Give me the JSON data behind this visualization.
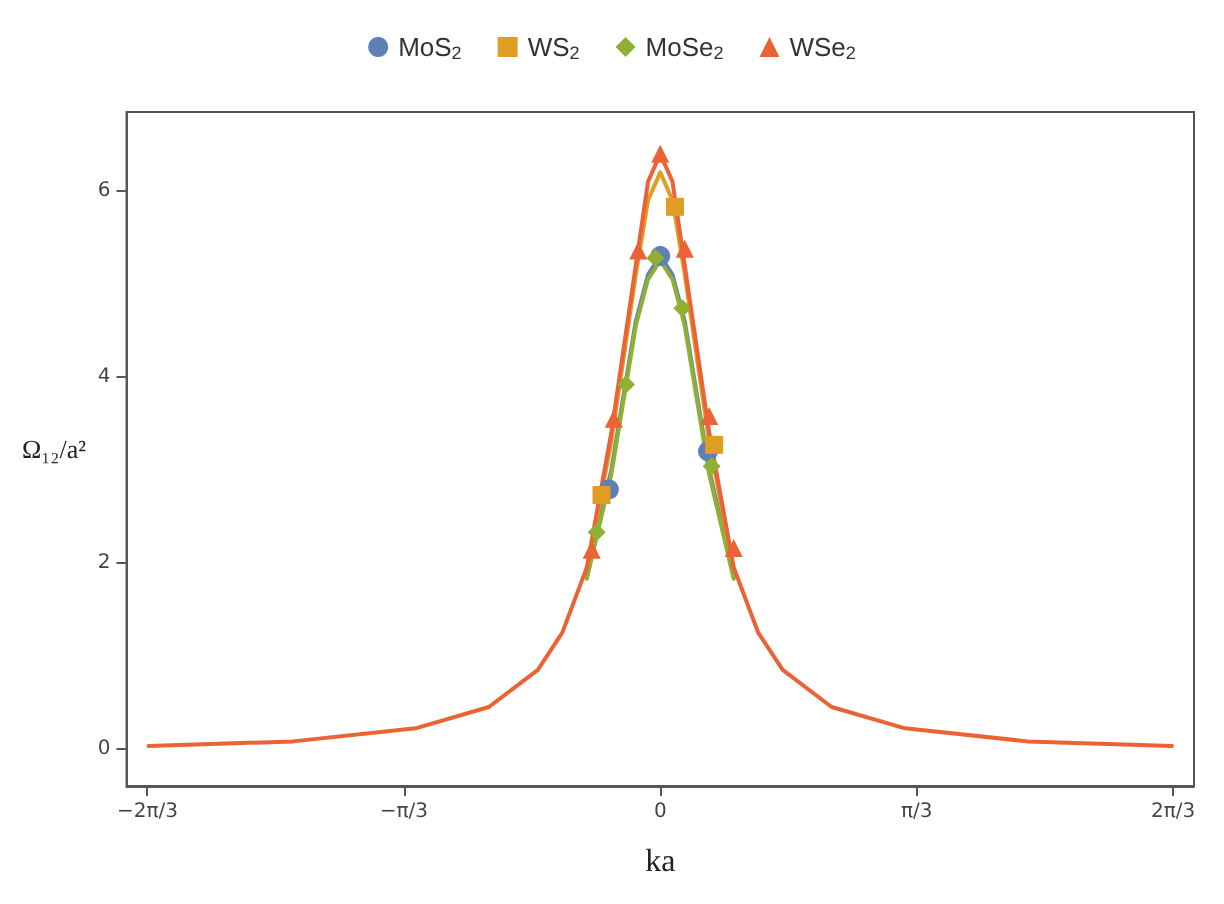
{
  "chart_data": {
    "type": "line",
    "xlabel": "ka",
    "ylabel": "Ω₁₂/a²",
    "xlim": [
      -2.18,
      2.18
    ],
    "ylim": [
      -0.4,
      6.85
    ],
    "xticks": [
      {
        "value": -2.0944,
        "label": "−2π/3"
      },
      {
        "value": -1.0472,
        "label": "−π/3"
      },
      0,
      {
        "value": 1.0472,
        "label": "π/3"
      },
      {
        "value": 2.0944,
        "label": "2π/3"
      }
    ],
    "yticks": [
      0,
      2,
      4,
      6
    ],
    "grid": false,
    "legend": "top",
    "line_style": "solid",
    "series": [
      {
        "type": "line",
        "color": "#5e81b5",
        "x": [
          -0.3,
          -0.2,
          -0.1,
          -0.05,
          0,
          0.05,
          0.1,
          0.2,
          0.3
        ],
        "values": [
          1.85,
          3.0,
          4.6,
          5.1,
          5.3,
          5.1,
          4.6,
          3.0,
          1.85
        ]
      },
      {
        "type": "line",
        "color": "#e19c24",
        "x": [
          -0.3,
          -0.2,
          -0.1,
          -0.05,
          0,
          0.05,
          0.1,
          0.2,
          0.3
        ],
        "values": [
          1.92,
          3.3,
          5.1,
          5.9,
          6.2,
          5.9,
          5.1,
          3.3,
          1.92
        ]
      },
      {
        "type": "line",
        "color": "#8fb032",
        "x": [
          -0.3,
          -0.2,
          -0.1,
          -0.05,
          0,
          0.05,
          0.1,
          0.2,
          0.3
        ],
        "values": [
          1.83,
          2.95,
          4.55,
          5.05,
          5.25,
          5.05,
          4.55,
          2.95,
          1.83
        ]
      },
      {
        "type": "line",
        "color": "#eb6235",
        "x": [
          -2.09,
          -1.5,
          -1,
          -0.7,
          -0.5,
          -0.4,
          -0.3,
          -0.2,
          -0.1,
          -0.05,
          0,
          0.05,
          0.1,
          0.2,
          0.3,
          0.4,
          0.5,
          0.7,
          1,
          1.5,
          2.09
        ],
        "values": [
          0.03,
          0.08,
          0.22,
          0.45,
          0.85,
          1.25,
          1.95,
          3.4,
          5.2,
          6.1,
          6.4,
          6.1,
          5.2,
          3.4,
          1.95,
          1.25,
          0.85,
          0.45,
          0.22,
          0.08,
          0.03
        ]
      },
      {
        "type": "scatter",
        "name": "MoS$_{2}$",
        "marker": "circle",
        "color": "#5e81b5",
        "x": [
          -0.21,
          0,
          0.195
        ],
        "values": [
          2.79,
          5.3,
          3.2
        ]
      },
      {
        "type": "scatter",
        "name": "WS$_{2}$",
        "marker": "square",
        "color": "#e19c24",
        "x": [
          -0.24,
          0.06,
          0.22
        ],
        "values": [
          2.73,
          5.83,
          3.27
        ]
      },
      {
        "type": "scatter",
        "name": "MoSe$_{2}$",
        "marker": "diamond",
        "color": "#8fb032",
        "x": [
          -0.26,
          -0.14,
          -0.02,
          0.09,
          0.21
        ],
        "values": [
          2.33,
          3.92,
          5.28,
          4.74,
          3.04
        ]
      },
      {
        "type": "scatter",
        "name": "WSe$_{2}$",
        "marker": "triangle",
        "color": "#eb6235",
        "x": [
          -0.28,
          -0.19,
          -0.09,
          0,
          0.1,
          0.2,
          0.3
        ],
        "values": [
          2.14,
          3.55,
          5.36,
          6.4,
          5.38,
          3.58,
          2.16
        ]
      }
    ]
  }
}
